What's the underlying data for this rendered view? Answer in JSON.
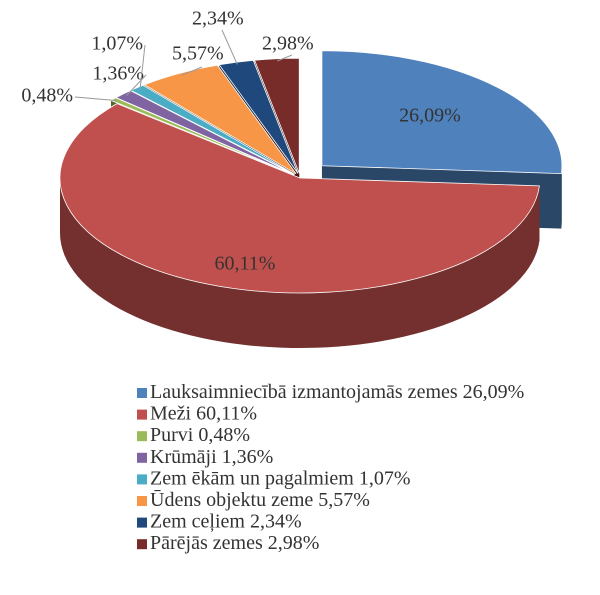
{
  "chart_data": {
    "type": "pie3d",
    "categories": [
      "Lauksaimniecībā izmantojamās zemes",
      "Meži",
      "Purvi",
      "Krūmāji",
      "Zem ēkām un pagalmiem",
      "Ūdens objektu zeme",
      "Zem ceļiem",
      "Pārējās zemes"
    ],
    "values": [
      26.09,
      60.11,
      0.48,
      1.36,
      1.07,
      5.57,
      2.34,
      2.98
    ],
    "value_labels": [
      "26,09%",
      "60,11%",
      "0,48%",
      "1,36%",
      "1,07%",
      "5,57%",
      "2,34%",
      "2,98%"
    ],
    "colors": [
      "#4f81bd",
      "#c0504d",
      "#9bbb59",
      "#8064a2",
      "#4bacc6",
      "#f79646",
      "#1f497d",
      "#772c2a"
    ],
    "legend": "bottom"
  }
}
